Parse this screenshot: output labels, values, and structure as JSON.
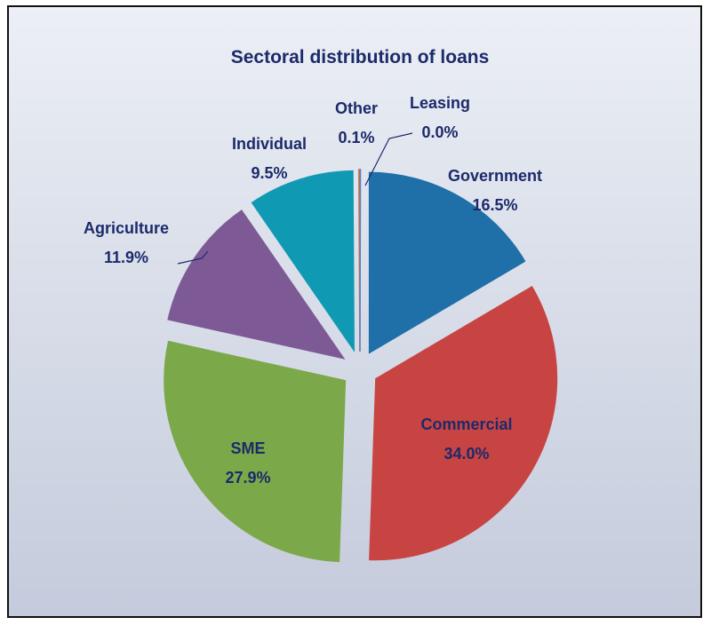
{
  "chart_data": {
    "type": "pie",
    "title": "Sectoral distribution of loans",
    "slices": [
      {
        "name": "Government",
        "value": 16.5,
        "label": "16.5%",
        "color": "#1f6fa8"
      },
      {
        "name": "Commercial",
        "value": 34.0,
        "label": "34.0%",
        "color": "#c84443"
      },
      {
        "name": "SME",
        "value": 27.9,
        "label": "27.9%",
        "color": "#7ba848"
      },
      {
        "name": "Agriculture",
        "value": 11.9,
        "label": "11.9%",
        "color": "#7d5a96"
      },
      {
        "name": "Individual",
        "value": 9.5,
        "label": "9.5%",
        "color": "#0f99b3"
      },
      {
        "name": "Other",
        "value": 0.1,
        "label": "0.1%",
        "color": "#e87c2c"
      },
      {
        "name": "Leasing",
        "value": 0.0,
        "label": "0.0%",
        "color": "#5b7fc0"
      }
    ],
    "exploded": true,
    "legend": "none"
  }
}
